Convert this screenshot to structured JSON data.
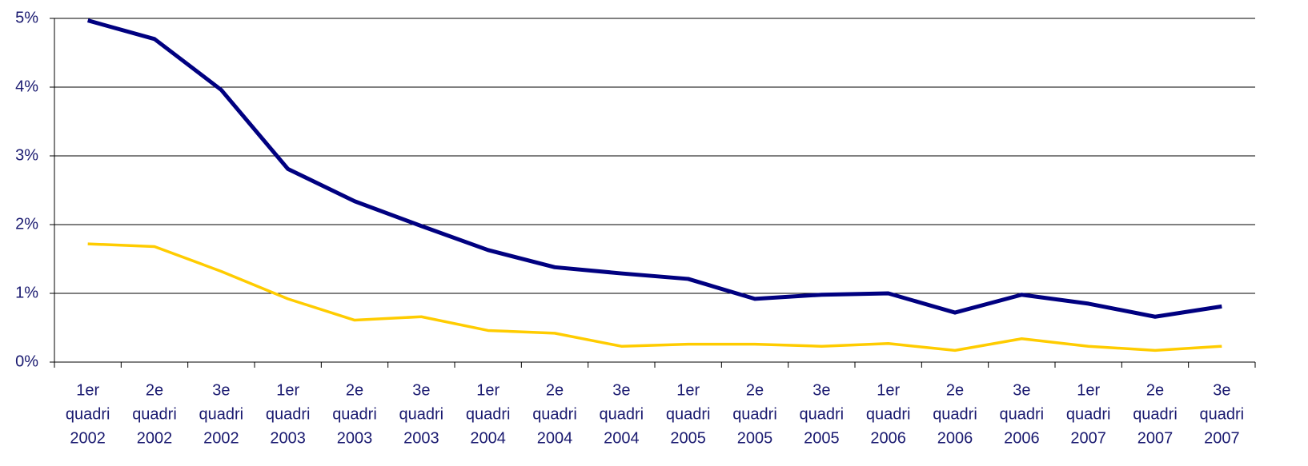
{
  "chart_data": {
    "type": "line",
    "categories": [
      [
        "1er",
        "quadri",
        "2002"
      ],
      [
        "2e",
        "quadri",
        "2002"
      ],
      [
        "3e",
        "quadri",
        "2002"
      ],
      [
        "1er",
        "quadri",
        "2003"
      ],
      [
        "2e",
        "quadri",
        "2003"
      ],
      [
        "3e",
        "quadri",
        "2003"
      ],
      [
        "1er",
        "quadri",
        "2004"
      ],
      [
        "2e",
        "quadri",
        "2004"
      ],
      [
        "3e",
        "quadri",
        "2004"
      ],
      [
        "1er",
        "quadri",
        "2005"
      ],
      [
        "2e",
        "quadri",
        "2005"
      ],
      [
        "3e",
        "quadri",
        "2005"
      ],
      [
        "1er",
        "quadri",
        "2006"
      ],
      [
        "2e",
        "quadri",
        "2006"
      ],
      [
        "3e",
        "quadri",
        "2006"
      ],
      [
        "1er",
        "quadri",
        "2007"
      ],
      [
        "2e",
        "quadri",
        "2007"
      ],
      [
        "3e",
        "quadri",
        "2007"
      ]
    ],
    "series": [
      {
        "color": "#000080",
        "values": [
          4.97,
          4.7,
          3.96,
          2.81,
          2.34,
          1.98,
          1.63,
          1.38,
          1.29,
          1.21,
          0.92,
          0.98,
          1.0,
          0.72,
          0.98,
          0.85,
          0.66,
          0.81
        ]
      },
      {
        "color": "#ffcc00",
        "values": [
          1.72,
          1.68,
          1.32,
          0.92,
          0.61,
          0.66,
          0.46,
          0.42,
          0.23,
          0.26,
          0.26,
          0.23,
          0.27,
          0.17,
          0.34,
          0.23,
          0.17,
          0.23
        ]
      }
    ],
    "ylim": [
      0,
      5
    ],
    "yticks": [
      {
        "value": 0,
        "label": "0%"
      },
      {
        "value": 1,
        "label": "1%"
      },
      {
        "value": 2,
        "label": "2%"
      },
      {
        "value": 3,
        "label": "3%"
      },
      {
        "value": 4,
        "label": "4%"
      },
      {
        "value": 5,
        "label": "5%"
      }
    ],
    "grid": true
  }
}
